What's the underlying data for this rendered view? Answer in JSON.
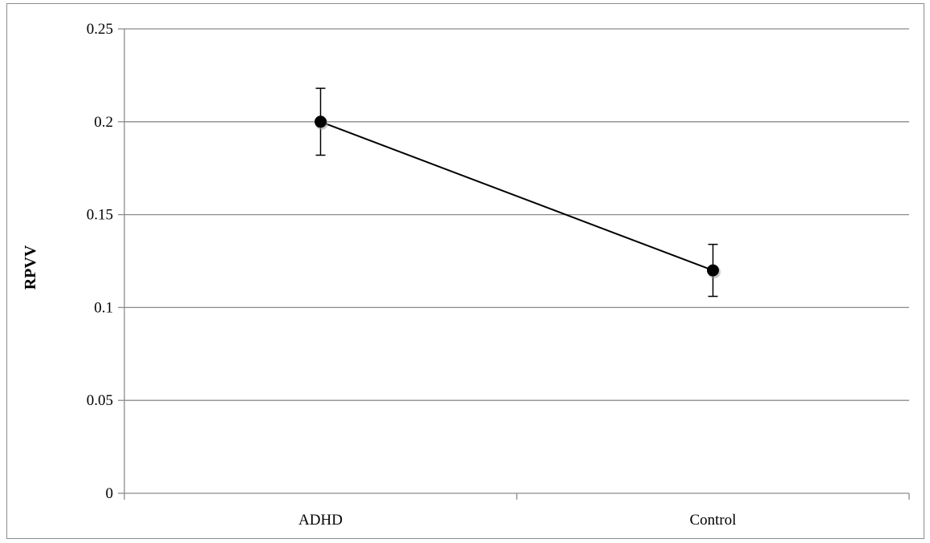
{
  "chart_data": {
    "type": "line",
    "title": "",
    "xlabel": "",
    "ylabel": "RPVV",
    "categories": [
      "ADHD",
      "Control"
    ],
    "series": [
      {
        "values": [
          0.2,
          0.12
        ],
        "error": [
          0.018,
          0.014
        ]
      }
    ],
    "ylim": [
      0,
      0.25
    ],
    "yticks": [
      0,
      0.05,
      0.1,
      0.15,
      0.2,
      0.25
    ],
    "ytick_labels": [
      "0",
      "0.05",
      "0.1",
      "0.15",
      "0.2",
      "0.25"
    ],
    "grid": true,
    "legend": "none",
    "colors": {
      "line": "#000000",
      "marker": "#000000",
      "grid": "#8c8c8c",
      "axis": "#8c8c8c"
    }
  }
}
